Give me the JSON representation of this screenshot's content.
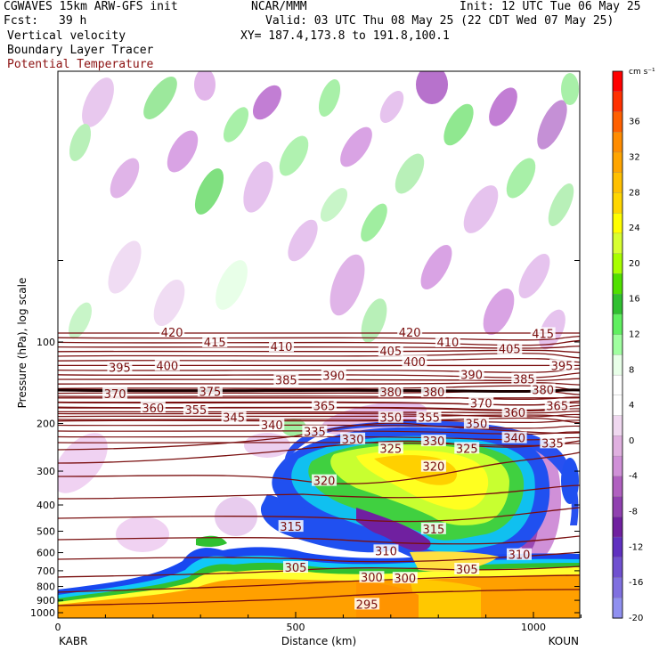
{
  "header": {
    "model": "CGWAVES 15km ARW-GFS init",
    "org": "NCAR/MMM",
    "init": "Init: 12 UTC Tue 06 May 25",
    "fcst_label": "Fcst:",
    "fcst_value": "39 h",
    "valid": "Valid: 03 UTC Thu 08 May 25 (22 CDT Wed 07 May 25)",
    "field1": "Vertical velocity",
    "xy": "XY= 187.4,173.8 to 191.8,100.1",
    "field2": "Boundary Layer Tracer",
    "field3": "Potential Temperature"
  },
  "chart_data": {
    "type": "heatmap",
    "xlabel": "Distance (km)",
    "ylabel": "Pressure (hPa), log scale",
    "xlim": [
      0,
      1110
    ],
    "x_ticks": [
      0,
      500,
      1000
    ],
    "y_ticks": [
      100,
      200,
      300,
      400,
      500,
      600,
      700,
      800,
      900,
      1000
    ],
    "start_station": "KABR",
    "end_station": "KOUN",
    "colorbar": {
      "unit": "cm s⁻¹",
      "labels": [
        36,
        32,
        28,
        24,
        20,
        16,
        12,
        8,
        4,
        0,
        -4,
        -8,
        -12,
        -16,
        -20
      ],
      "colors": [
        "#ff0000",
        "#ff3000",
        "#ff6000",
        "#ff8c00",
        "#ffa500",
        "#ffc000",
        "#ffd700",
        "#ffff00",
        "#d8ff30",
        "#a8ff00",
        "#50e000",
        "#30c030",
        "#60f060",
        "#a0ffa0",
        "#e8ffe8",
        "#ffffff",
        "#ffffff",
        "#f0d8f0",
        "#e0b0e0",
        "#d090d8",
        "#b060c0",
        "#9040b0",
        "#7020a0",
        "#6030c0",
        "#7050d0",
        "#8070e0",
        "#9090f0"
      ],
      "top_arrow_color": "#c00000"
    },
    "theta_color": "#7a0f0f",
    "theta_labels": [
      {
        "v": "420",
        "x": 240,
        "p": 92
      },
      {
        "v": "415",
        "x": 330,
        "p": 100
      },
      {
        "v": "410",
        "x": 470,
        "p": 104
      },
      {
        "v": "405",
        "x": 700,
        "p": 108
      },
      {
        "v": "400",
        "x": 230,
        "p": 122
      },
      {
        "v": "395",
        "x": 130,
        "p": 124
      },
      {
        "v": "420",
        "x": 740,
        "p": 92
      },
      {
        "v": "410",
        "x": 820,
        "p": 100
      },
      {
        "v": "405",
        "x": 950,
        "p": 106
      },
      {
        "v": "415",
        "x": 1020,
        "p": 93
      },
      {
        "v": "400",
        "x": 750,
        "p": 118
      },
      {
        "v": "395",
        "x": 1060,
        "p": 122
      },
      {
        "v": "390",
        "x": 580,
        "p": 133
      },
      {
        "v": "385",
        "x": 480,
        "p": 138
      },
      {
        "v": "390",
        "x": 870,
        "p": 132
      },
      {
        "v": "385",
        "x": 980,
        "p": 137
      },
      {
        "v": "375",
        "x": 320,
        "p": 152
      },
      {
        "v": "370",
        "x": 120,
        "p": 155
      },
      {
        "v": "380",
        "x": 700,
        "p": 153
      },
      {
        "v": "380",
        "x": 790,
        "p": 153
      },
      {
        "v": "380",
        "x": 1020,
        "p": 150
      },
      {
        "v": "360",
        "x": 200,
        "p": 175
      },
      {
        "v": "355",
        "x": 290,
        "p": 178
      },
      {
        "v": "365",
        "x": 560,
        "p": 172
      },
      {
        "v": "370",
        "x": 890,
        "p": 168
      },
      {
        "v": "365",
        "x": 1050,
        "p": 172
      },
      {
        "v": "345",
        "x": 370,
        "p": 190
      },
      {
        "v": "360",
        "x": 960,
        "p": 182
      },
      {
        "v": "350",
        "x": 700,
        "p": 190
      },
      {
        "v": "355",
        "x": 780,
        "p": 190
      },
      {
        "v": "350",
        "x": 880,
        "p": 200
      },
      {
        "v": "340",
        "x": 450,
        "p": 202
      },
      {
        "v": "335",
        "x": 540,
        "p": 214
      },
      {
        "v": "330",
        "x": 620,
        "p": 228
      },
      {
        "v": "330",
        "x": 790,
        "p": 232
      },
      {
        "v": "340",
        "x": 960,
        "p": 226
      },
      {
        "v": "335",
        "x": 1040,
        "p": 236
      },
      {
        "v": "325",
        "x": 700,
        "p": 247
      },
      {
        "v": "325",
        "x": 860,
        "p": 247
      },
      {
        "v": "320",
        "x": 790,
        "p": 288
      },
      {
        "v": "320",
        "x": 560,
        "p": 325
      },
      {
        "v": "315",
        "x": 490,
        "p": 480
      },
      {
        "v": "315",
        "x": 790,
        "p": 490
      },
      {
        "v": "310",
        "x": 690,
        "p": 590
      },
      {
        "v": "310",
        "x": 970,
        "p": 610
      },
      {
        "v": "305",
        "x": 500,
        "p": 680
      },
      {
        "v": "300",
        "x": 660,
        "p": 740
      },
      {
        "v": "300",
        "x": 730,
        "p": 745
      },
      {
        "v": "305",
        "x": 860,
        "p": 690
      },
      {
        "v": "295",
        "x": 650,
        "p": 930
      }
    ]
  }
}
